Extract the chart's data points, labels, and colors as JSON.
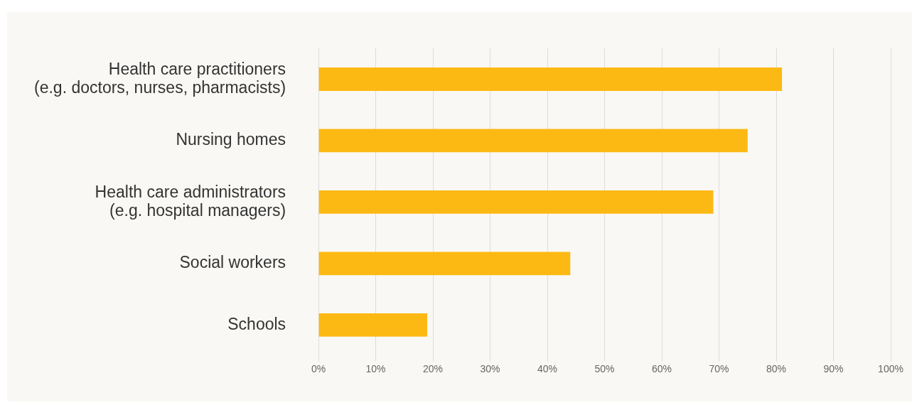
{
  "chart_data": {
    "type": "bar",
    "orientation": "horizontal",
    "categories": [
      "Health care practitioners\n(e.g. doctors, nurses, pharmacists)",
      "Nursing homes",
      "Health care administrators\n(e.g. hospital managers)",
      "Social workers",
      "Schools"
    ],
    "values": [
      81,
      75,
      69,
      44,
      19
    ],
    "color": "#fdb913",
    "xlim": [
      0,
      100
    ],
    "xticks": [
      {
        "value": 0,
        "label": "0%"
      },
      {
        "value": 10,
        "label": "10%"
      },
      {
        "value": 20,
        "label": "20%"
      },
      {
        "value": 30,
        "label": "30%"
      },
      {
        "value": 40,
        "label": "40%"
      },
      {
        "value": 50,
        "label": "50%"
      },
      {
        "value": 60,
        "label": "60%"
      },
      {
        "value": 70,
        "label": "70%"
      },
      {
        "value": 80,
        "label": "80%"
      },
      {
        "value": 90,
        "label": "90%"
      },
      {
        "value": 100,
        "label": "100%"
      }
    ],
    "grid": "x",
    "legend": false
  }
}
